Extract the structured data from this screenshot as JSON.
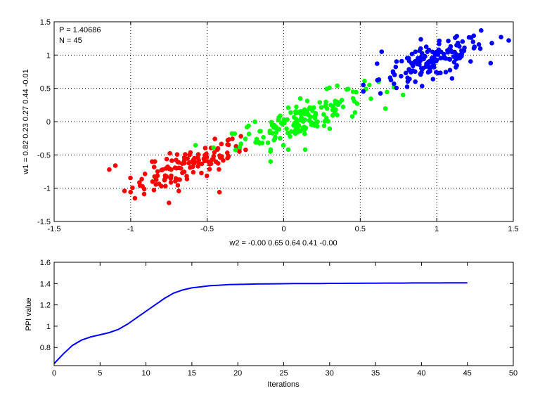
{
  "chart_data": [
    {
      "type": "scatter",
      "annotations": [
        "P = 1.40686",
        "N = 45"
      ],
      "xlabel": "w2 = -0.00  0.65  0.64  0.41  -0.00",
      "ylabel": "w1 = 0.82  0.23  0.27  0.44  -0.01",
      "xlim": [
        -1.5,
        1.5
      ],
      "ylim": [
        -1.5,
        1.5
      ],
      "xticks": [
        -1.5,
        -1,
        -0.5,
        0,
        0.5,
        1,
        1.5
      ],
      "yticks": [
        -1.5,
        -1,
        -0.5,
        0,
        0.5,
        1,
        1.5
      ],
      "grid": true,
      "clusters": [
        {
          "color": "#ff0000",
          "n": 120,
          "center": [
            -0.63,
            -0.68
          ],
          "spread": [
            0.18,
            0.12
          ],
          "slope": 0.85,
          "points": [
            [
              -1.14,
              -0.72
            ],
            [
              -1.1,
              -0.66
            ],
            [
              -1.04,
              -1.04
            ],
            [
              -0.86,
              -0.6
            ],
            [
              -0.75,
              -1.22
            ],
            [
              -0.42,
              -1.06
            ],
            [
              -0.36,
              -0.52
            ],
            [
              -0.29,
              -0.45
            ],
            [
              -0.28,
              -0.22
            ],
            [
              -0.45,
              -0.26
            ]
          ]
        },
        {
          "color": "#00ff00",
          "n": 160,
          "center": [
            0.12,
            0.04
          ],
          "spread": [
            0.2,
            0.14
          ],
          "slope": 0.8,
          "points": [
            [
              -0.32,
              -0.18
            ],
            [
              -0.25,
              -0.26
            ],
            [
              -0.14,
              -0.32
            ],
            [
              0.03,
              -0.42
            ],
            [
              0.14,
              -0.42
            ],
            [
              0.35,
              0.54
            ],
            [
              0.56,
              0.55
            ],
            [
              0.62,
              0.6
            ],
            [
              0.78,
              0.4
            ],
            [
              0.72,
              0.52
            ]
          ]
        },
        {
          "color": "#0000ff",
          "n": 150,
          "center": [
            0.97,
            0.9
          ],
          "spread": [
            0.17,
            0.12
          ],
          "slope": 0.75,
          "points": [
            [
              0.52,
              0.55
            ],
            [
              0.61,
              0.87
            ],
            [
              0.64,
              1.05
            ],
            [
              0.86,
              0.6
            ],
            [
              1.1,
              0.65
            ],
            [
              1.12,
              1.26
            ],
            [
              1.29,
              1.37
            ],
            [
              1.42,
              1.27
            ],
            [
              1.47,
              1.22
            ],
            [
              1.36,
              1.18
            ]
          ]
        }
      ]
    },
    {
      "type": "line",
      "xlabel": "Iterations",
      "ylabel": "PPI value",
      "xlim": [
        0,
        50
      ],
      "ylim": [
        0.63,
        1.6
      ],
      "xticks": [
        0,
        5,
        10,
        15,
        20,
        25,
        30,
        35,
        40,
        45,
        50
      ],
      "yticks": [
        0.8,
        1,
        1.2,
        1.4,
        1.6
      ],
      "grid": false,
      "series": [
        {
          "color": "#0000ff",
          "x": [
            0,
            1,
            2,
            3,
            4,
            5,
            6,
            7,
            8,
            9,
            10,
            11,
            12,
            13,
            14,
            15,
            16,
            17,
            18,
            19,
            20,
            21,
            22,
            23,
            24,
            25,
            26,
            27,
            28,
            29,
            30,
            31,
            32,
            33,
            34,
            35,
            36,
            37,
            38,
            39,
            40,
            41,
            42,
            43,
            44,
            45
          ],
          "y": [
            0.65,
            0.74,
            0.82,
            0.87,
            0.9,
            0.92,
            0.94,
            0.97,
            1.02,
            1.08,
            1.14,
            1.2,
            1.26,
            1.31,
            1.34,
            1.36,
            1.37,
            1.38,
            1.385,
            1.39,
            1.392,
            1.394,
            1.396,
            1.397,
            1.398,
            1.399,
            1.4,
            1.4,
            1.401,
            1.401,
            1.402,
            1.402,
            1.403,
            1.403,
            1.404,
            1.404,
            1.405,
            1.405,
            1.405,
            1.406,
            1.406,
            1.406,
            1.406,
            1.407,
            1.407,
            1.407
          ]
        }
      ]
    }
  ]
}
